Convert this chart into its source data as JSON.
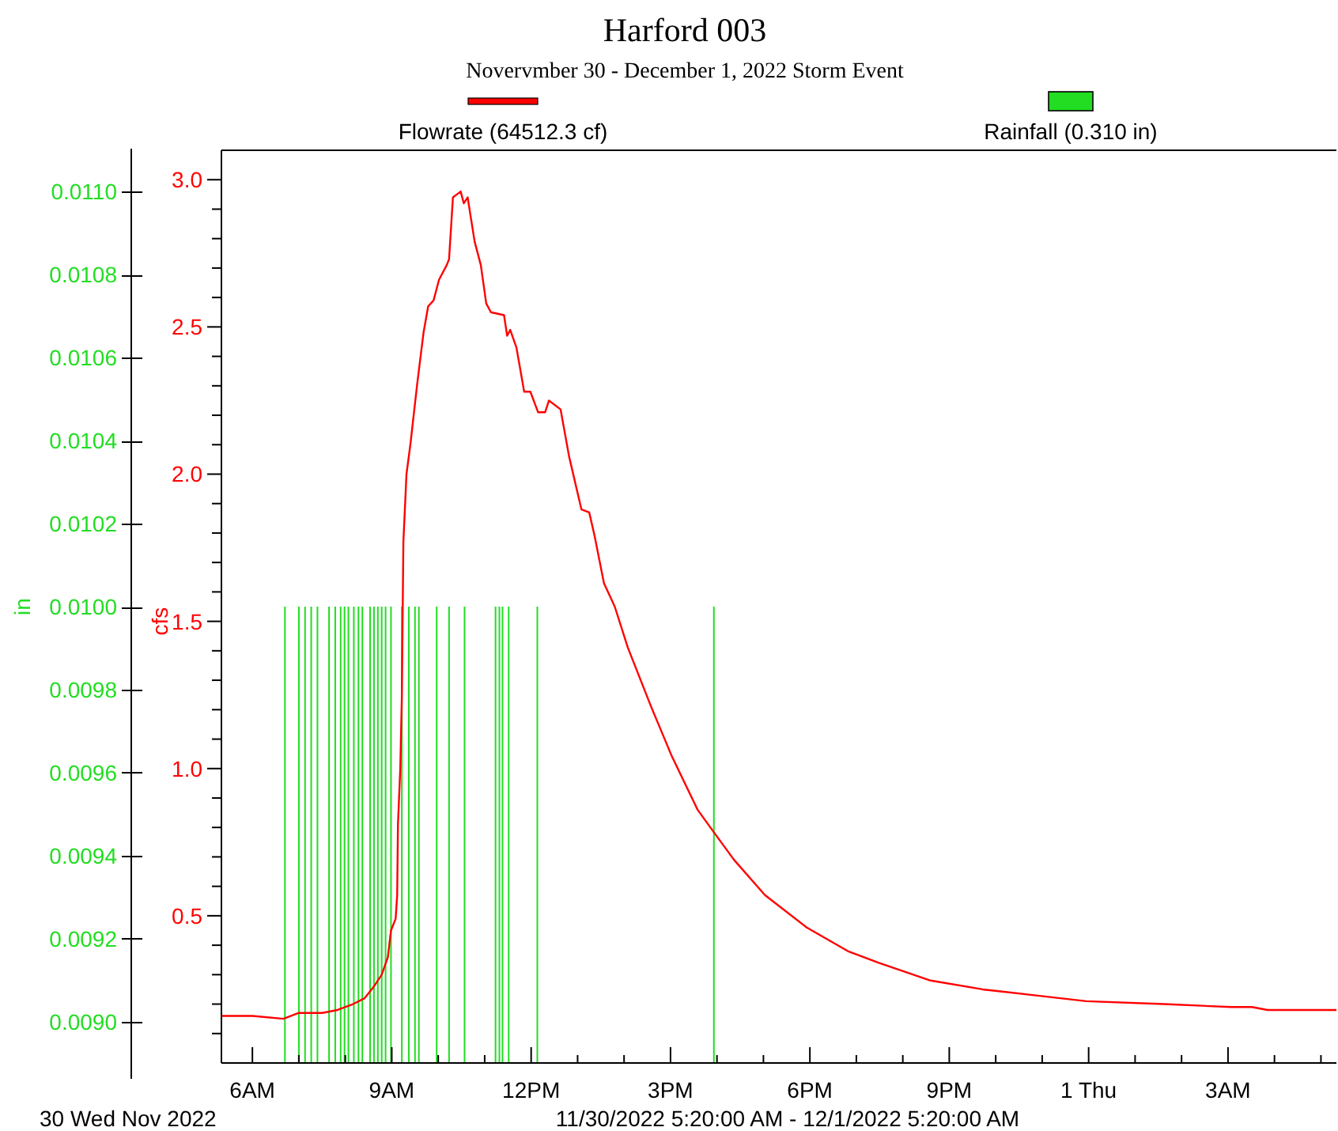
{
  "chart_data": {
    "type": "line",
    "title": "Harford 003",
    "subtitle": "Novervmber 30 - December 1, 2022 Storm Event",
    "ylabel": "cfs",
    "y2label": "in",
    "legend": "top",
    "annotations": [
      "30 Wed Nov 2022",
      "11/30/2022 5:20:00 AM - 12/1/2022 5:20:00 AM"
    ],
    "xlim": [
      "2022-11-30T05:20",
      "2022-12-01T05:20"
    ],
    "xticks": [
      {
        "value": "2022-11-30T06:00",
        "label": "6AM"
      },
      {
        "value": "2022-11-30T07:00",
        "label": null
      },
      {
        "value": "2022-11-30T08:00",
        "label": null
      },
      {
        "value": "2022-11-30T09:00",
        "label": "9AM"
      },
      {
        "value": "2022-11-30T10:00",
        "label": null
      },
      {
        "value": "2022-11-30T11:00",
        "label": null
      },
      {
        "value": "2022-11-30T12:00",
        "label": "12PM"
      },
      {
        "value": "2022-11-30T13:00",
        "label": null
      },
      {
        "value": "2022-11-30T14:00",
        "label": null
      },
      {
        "value": "2022-11-30T15:00",
        "label": "3PM"
      },
      {
        "value": "2022-11-30T16:00",
        "label": null
      },
      {
        "value": "2022-11-30T17:00",
        "label": null
      },
      {
        "value": "2022-11-30T18:00",
        "label": "6PM"
      },
      {
        "value": "2022-11-30T19:00",
        "label": null
      },
      {
        "value": "2022-11-30T20:00",
        "label": null
      },
      {
        "value": "2022-11-30T21:00",
        "label": "9PM"
      },
      {
        "value": "2022-11-30T22:00",
        "label": null
      },
      {
        "value": "2022-11-30T23:00",
        "label": null
      },
      {
        "value": "2022-12-01T00:00",
        "label": "1 Thu"
      },
      {
        "value": "2022-12-01T01:00",
        "label": null
      },
      {
        "value": "2022-12-01T02:00",
        "label": null
      },
      {
        "value": "2022-12-01T03:00",
        "label": "3AM"
      },
      {
        "value": "2022-12-01T04:00",
        "label": null
      },
      {
        "value": "2022-12-01T05:00",
        "label": null
      }
    ],
    "ylim": [
      0,
      3.1
    ],
    "yticks": [
      {
        "value": 0.1,
        "label": null
      },
      {
        "value": 0.2,
        "label": null
      },
      {
        "value": 0.3,
        "label": null
      },
      {
        "value": 0.4,
        "label": null
      },
      {
        "value": 0.5,
        "label": "0.5"
      },
      {
        "value": 0.6,
        "label": null
      },
      {
        "value": 0.7,
        "label": null
      },
      {
        "value": 0.8,
        "label": null
      },
      {
        "value": 0.9,
        "label": null
      },
      {
        "value": 1.0,
        "label": "1.0"
      },
      {
        "value": 1.1,
        "label": null
      },
      {
        "value": 1.2,
        "label": null
      },
      {
        "value": 1.3,
        "label": null
      },
      {
        "value": 1.4,
        "label": null
      },
      {
        "value": 1.5,
        "label": "1.5"
      },
      {
        "value": 1.6,
        "label": null
      },
      {
        "value": 1.7,
        "label": null
      },
      {
        "value": 1.8,
        "label": null
      },
      {
        "value": 1.9,
        "label": null
      },
      {
        "value": 2.0,
        "label": "2.0"
      },
      {
        "value": 2.1,
        "label": null
      },
      {
        "value": 2.2,
        "label": null
      },
      {
        "value": 2.3,
        "label": null
      },
      {
        "value": 2.4,
        "label": null
      },
      {
        "value": 2.5,
        "label": "2.5"
      },
      {
        "value": 2.6,
        "label": null
      },
      {
        "value": 2.7,
        "label": null
      },
      {
        "value": 2.8,
        "label": null
      },
      {
        "value": 2.9,
        "label": null
      },
      {
        "value": 3.0,
        "label": "3.0"
      }
    ],
    "y2lim": [
      0.0089,
      0.0111
    ],
    "y2ticks": [
      {
        "value": 0.009,
        "label": "0.0090"
      },
      {
        "value": 0.0092,
        "label": "0.0092"
      },
      {
        "value": 0.0094,
        "label": "0.0094"
      },
      {
        "value": 0.0096,
        "label": "0.0096"
      },
      {
        "value": 0.0098,
        "label": "0.0098"
      },
      {
        "value": 0.01,
        "label": "0.0100"
      },
      {
        "value": 0.0102,
        "label": "0.0102"
      },
      {
        "value": 0.0104,
        "label": "0.0104"
      },
      {
        "value": 0.0106,
        "label": "0.0106"
      },
      {
        "value": 0.0108,
        "label": "0.0108"
      },
      {
        "value": 0.011,
        "label": "0.0110"
      }
    ],
    "series": [
      {
        "name": "Flowrate (64512.3 cf)",
        "color": "#ff0000",
        "x": [
          "2022-11-30T05:20",
          "2022-11-30T06:00",
          "2022-11-30T06:40",
          "2022-11-30T07:00",
          "2022-11-30T07:30",
          "2022-11-30T07:50",
          "2022-11-30T08:10",
          "2022-11-30T08:25",
          "2022-11-30T08:37",
          "2022-11-30T08:47",
          "2022-11-30T08:55",
          "2022-11-30T08:59",
          "2022-11-30T09:05",
          "2022-11-30T09:07",
          "2022-11-30T09:08",
          "2022-11-30T09:11",
          "2022-11-30T09:13",
          "2022-11-30T09:15",
          "2022-11-30T09:19",
          "2022-11-30T09:24",
          "2022-11-30T09:33",
          "2022-11-30T09:41",
          "2022-11-30T09:47",
          "2022-11-30T09:54",
          "2022-11-30T10:01",
          "2022-11-30T10:11",
          "2022-11-30T10:14",
          "2022-11-30T10:19",
          "2022-11-30T10:24",
          "2022-11-30T10:29",
          "2022-11-30T10:33",
          "2022-11-30T10:38",
          "2022-11-30T10:47",
          "2022-11-30T10:55",
          "2022-11-30T11:02",
          "2022-11-30T11:08",
          "2022-11-30T11:25",
          "2022-11-30T11:29",
          "2022-11-30T11:33",
          "2022-11-30T11:41",
          "2022-11-30T11:51",
          "2022-11-30T11:59",
          "2022-11-30T12:09",
          "2022-11-30T12:18",
          "2022-11-30T12:23",
          "2022-11-30T12:38",
          "2022-11-30T12:49",
          "2022-11-30T13:05",
          "2022-11-30T13:15",
          "2022-11-30T13:22",
          "2022-11-30T13:34",
          "2022-11-30T13:48",
          "2022-11-30T14:05",
          "2022-11-30T14:35",
          "2022-11-30T15:02",
          "2022-11-30T15:35",
          "2022-11-30T15:57",
          "2022-11-30T16:22",
          "2022-11-30T17:02",
          "2022-11-30T17:56",
          "2022-11-30T18:49",
          "2022-11-30T19:29",
          "2022-11-30T20:36",
          "2022-11-30T21:43",
          "2022-11-30T22:50",
          "2022-11-30T23:57",
          "2022-12-01T01:37",
          "2022-12-01T03:04",
          "2022-12-01T03:31",
          "2022-12-01T03:51",
          "2022-12-01T05:20"
        ],
        "values": [
          0.16,
          0.16,
          0.15,
          0.17,
          0.17,
          0.18,
          0.2,
          0.22,
          0.26,
          0.3,
          0.36,
          0.45,
          0.49,
          0.57,
          0.81,
          1.0,
          1.24,
          1.77,
          2.0,
          2.1,
          2.31,
          2.48,
          2.57,
          2.59,
          2.66,
          2.71,
          2.73,
          2.94,
          2.95,
          2.96,
          2.92,
          2.94,
          2.79,
          2.71,
          2.58,
          2.55,
          2.54,
          2.47,
          2.49,
          2.43,
          2.28,
          2.28,
          2.21,
          2.21,
          2.25,
          2.22,
          2.06,
          1.88,
          1.87,
          1.79,
          1.63,
          1.55,
          1.41,
          1.21,
          1.04,
          0.86,
          0.78,
          0.69,
          0.57,
          0.46,
          0.38,
          0.34,
          0.28,
          0.25,
          0.23,
          0.21,
          0.2,
          0.19,
          0.19,
          0.18,
          0.18
        ]
      },
      {
        "name": "Rainfall (0.310 in)",
        "type": "bar",
        "axis": "y2",
        "color": "#22dd22",
        "x": [
          "2022-11-30T06:42",
          "2022-11-30T07:00",
          "2022-11-30T07:08",
          "2022-11-30T07:16",
          "2022-11-30T07:24",
          "2022-11-30T07:39",
          "2022-11-30T07:47",
          "2022-11-30T07:54",
          "2022-11-30T07:59",
          "2022-11-30T08:04",
          "2022-11-30T08:11",
          "2022-11-30T08:17",
          "2022-11-30T08:22",
          "2022-11-30T08:32",
          "2022-11-30T08:37",
          "2022-11-30T08:42",
          "2022-11-30T08:47",
          "2022-11-30T08:52",
          "2022-11-30T08:59",
          "2022-11-30T09:13",
          "2022-11-30T09:22",
          "2022-11-30T09:30",
          "2022-11-30T09:35",
          "2022-11-30T09:58",
          "2022-11-30T10:14",
          "2022-11-30T10:34",
          "2022-11-30T11:14",
          "2022-11-30T11:19",
          "2022-11-30T11:23",
          "2022-11-30T11:31",
          "2022-11-30T12:08",
          "2022-11-30T15:56"
        ],
        "values": [
          0.01,
          0.01,
          0.01,
          0.01,
          0.01,
          0.01,
          0.01,
          0.01,
          0.01,
          0.01,
          0.01,
          0.01,
          0.01,
          0.01,
          0.01,
          0.01,
          0.01,
          0.01,
          0.01,
          0.01,
          0.01,
          0.01,
          0.01,
          0.01,
          0.01,
          0.01,
          0.01,
          0.01,
          0.01,
          0.01,
          0.01,
          0.01
        ]
      }
    ]
  }
}
